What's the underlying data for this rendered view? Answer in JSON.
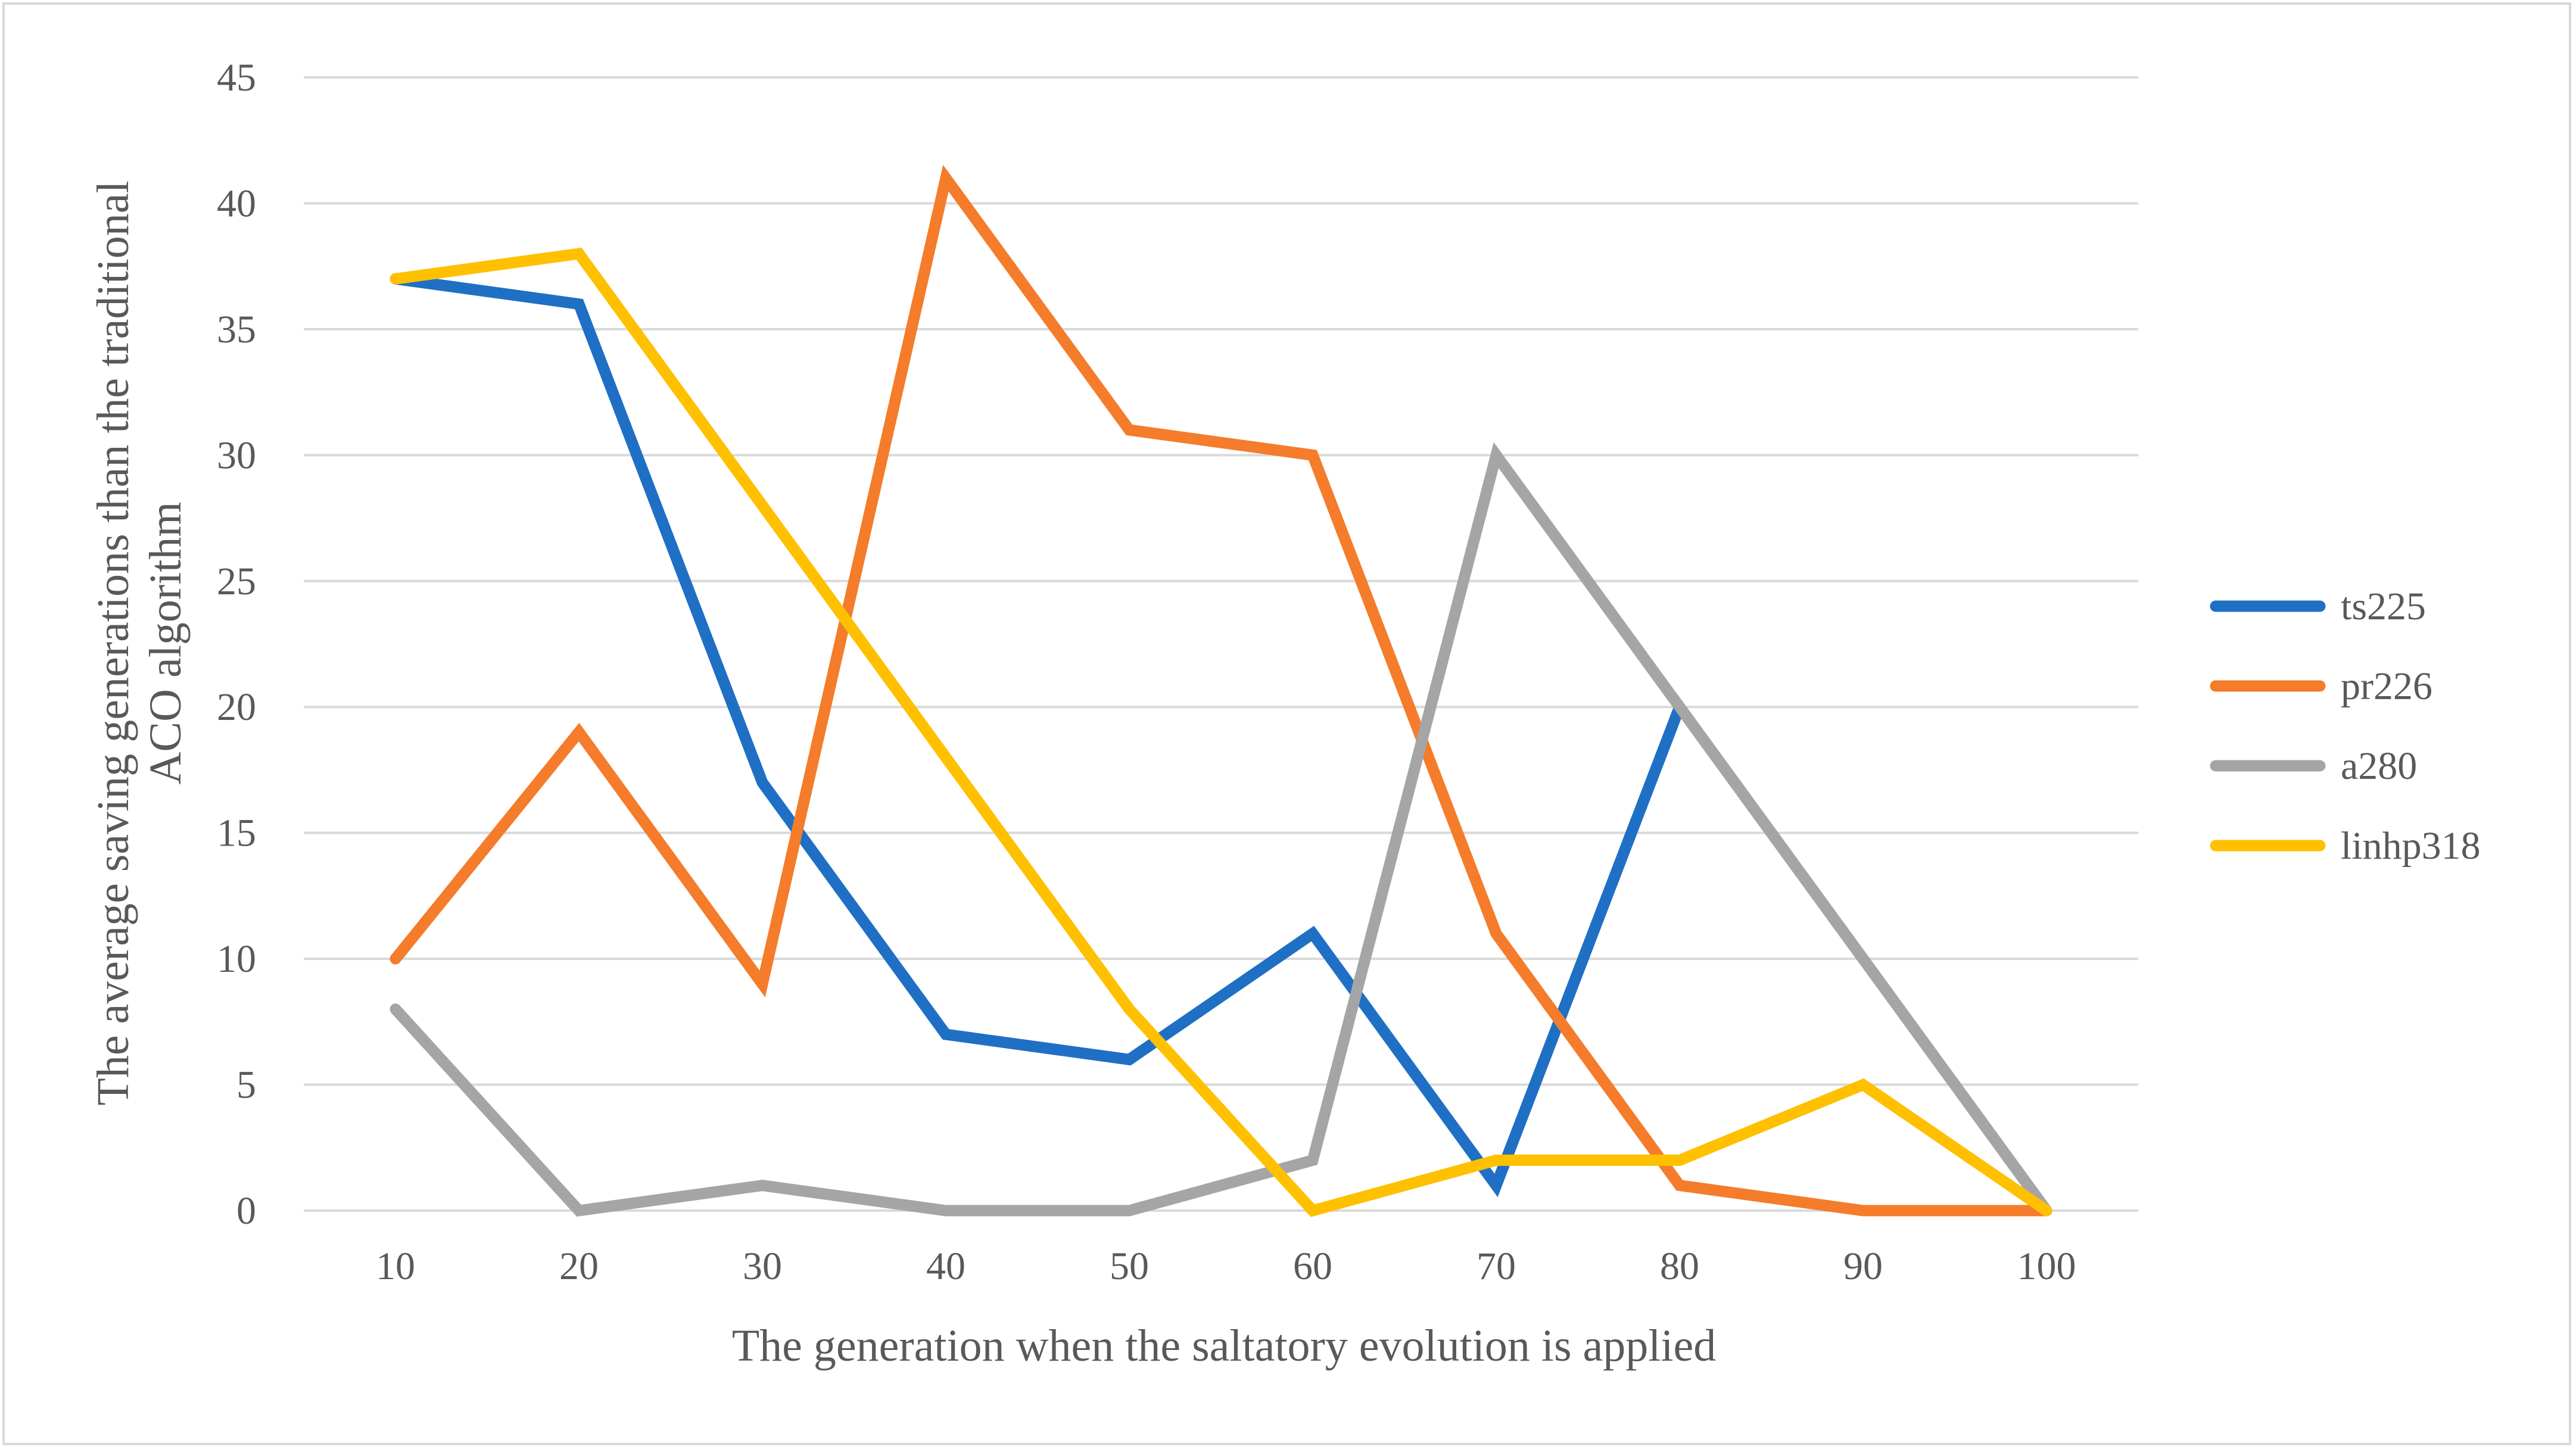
{
  "chart_data": {
    "type": "line",
    "title": "",
    "xlabel": "The generation when the saltatory evolution  is applied",
    "ylabel_lines": [
      "The average saving generations  than the traditional",
      "ACO algorithm"
    ],
    "categories": [
      "10",
      "20",
      "30",
      "40",
      "50",
      "60",
      "70",
      "80",
      "90",
      "100"
    ],
    "ylim": [
      0,
      45
    ],
    "yticks": [
      "0",
      "5",
      "10",
      "15",
      "20",
      "25",
      "30",
      "35",
      "40",
      "45"
    ],
    "grid": true,
    "legend_position": "right",
    "series": [
      {
        "name": "ts225",
        "color": "#1f6fc5",
        "values": [
          37,
          36,
          17,
          7,
          6,
          11,
          1,
          20,
          10,
          0
        ]
      },
      {
        "name": "pr226",
        "color": "#f47c2a",
        "values": [
          10,
          19,
          9,
          41,
          31,
          30,
          11,
          1,
          0,
          0
        ]
      },
      {
        "name": "a280",
        "color": "#a5a5a5",
        "values": [
          8,
          0,
          1,
          0,
          0,
          2,
          30,
          20,
          10,
          0
        ]
      },
      {
        "name": "linhp318",
        "color": "#ffc000",
        "values": [
          37,
          38,
          28,
          18,
          8,
          0,
          2,
          2,
          5,
          0
        ]
      }
    ]
  }
}
